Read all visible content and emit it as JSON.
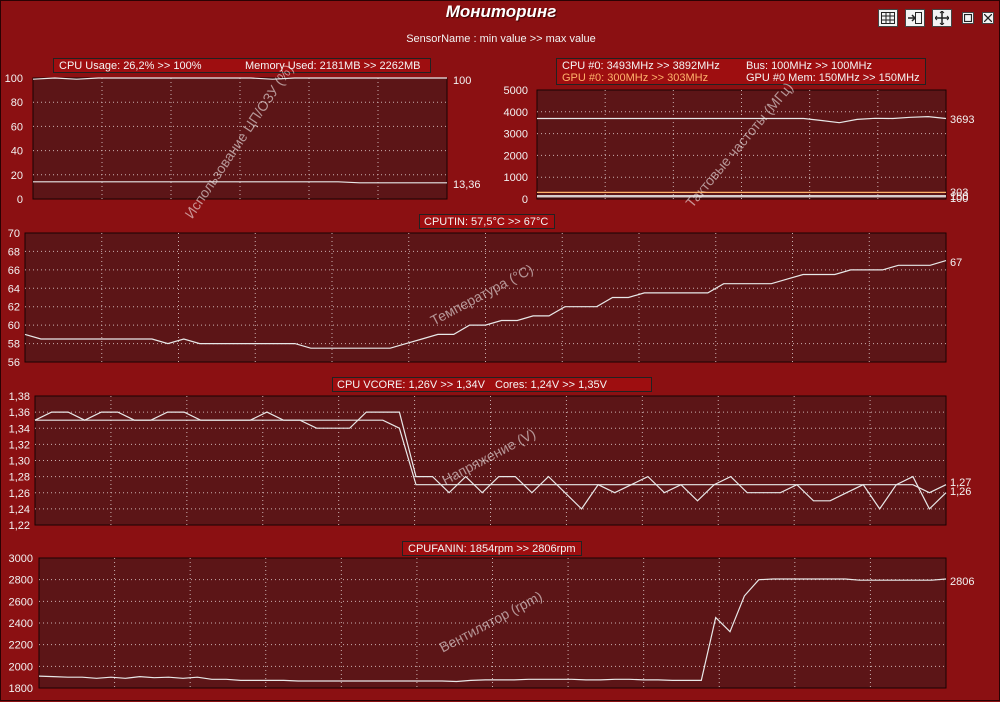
{
  "window": {
    "title": "Мониторинг",
    "subtitle": "SensorName : min value >> max value"
  },
  "toolbar": [
    {
      "name": "table-icon",
      "label": "table"
    },
    {
      "name": "dock-icon",
      "label": "dock"
    },
    {
      "name": "move-icon",
      "label": "move"
    },
    {
      "name": "restore-icon",
      "label": "restore"
    },
    {
      "name": "close-icon",
      "label": "close"
    }
  ],
  "colors": {
    "background": "#8b1012",
    "plot_bg": "#5c1517",
    "line": "#e8e8e8",
    "accent_text": "#ffb36b"
  },
  "panels": {
    "usage": {
      "legend": [
        "CPU Usage: 26,2% >> 100%",
        "Memory Used: 2181MB >> 2262MB"
      ],
      "axis_label": "Использование ЦП/ОЗУ (%)",
      "yticks": [
        "100",
        "80",
        "60",
        "40",
        "20",
        "0"
      ],
      "end_labels": [
        "100",
        "13,36"
      ]
    },
    "clocks": {
      "legend": [
        "CPU #0: 3493MHz >> 3892MHz",
        "Bus: 100MHz >> 100MHz",
        "GPU #0: 300MHz >> 303MHz",
        "GPU #0 Mem: 150MHz >> 150MHz"
      ],
      "axis_label": "Тактовые частоты (МГц)",
      "yticks": [
        "5000",
        "4000",
        "3000",
        "2000",
        "1000",
        "0"
      ],
      "end_labels": [
        "3693",
        "303",
        "150",
        "100"
      ]
    },
    "temp": {
      "legend": [
        "CPUTIN: 57,5°C >> 67°C"
      ],
      "axis_label": "Температура (°C)",
      "yticks": [
        "70",
        "68",
        "66",
        "64",
        "62",
        "60",
        "58",
        "56"
      ],
      "end_labels": [
        "67"
      ]
    },
    "voltage": {
      "legend": [
        "CPU VCORE: 1,26V >> 1,34V",
        "Cores: 1,24V >> 1,35V"
      ],
      "axis_label": "Напряжение (V)",
      "yticks": [
        "1,38",
        "1,36",
        "1,34",
        "1,32",
        "1,30",
        "1,28",
        "1,26",
        "1,24",
        "1,22"
      ],
      "end_labels": [
        "1,27",
        "1,26"
      ]
    },
    "fan": {
      "legend": [
        "CPUFANIN: 1854rpm >> 2806rpm"
      ],
      "axis_label": "Вентилятор (rpm)",
      "yticks": [
        "3000",
        "2800",
        "2600",
        "2400",
        "2200",
        "2000",
        "1800"
      ],
      "end_labels": [
        "2806"
      ]
    }
  },
  "chart_data": [
    {
      "type": "line",
      "title": "",
      "ylabel": "Использование ЦП/ОЗУ (%)",
      "ylim": [
        0,
        100
      ],
      "grid": true,
      "series": [
        {
          "name": "CPU Usage",
          "values": [
            99,
            100,
            99,
            100,
            100,
            100,
            100,
            100,
            100,
            100,
            100,
            99,
            100,
            100,
            100,
            100,
            100,
            100,
            100,
            100
          ]
        },
        {
          "name": "Memory Used",
          "values": [
            14.2,
            14.2,
            14.2,
            14.2,
            14.2,
            14.2,
            14.2,
            14.2,
            14.2,
            14.2,
            14.2,
            14.2,
            14.2,
            14.2,
            14.2,
            13.4,
            13.4,
            13.4,
            13.4,
            13.36
          ]
        }
      ]
    },
    {
      "type": "line",
      "title": "",
      "ylabel": "Тактовые частоты (МГц)",
      "ylim": [
        0,
        5000
      ],
      "grid": true,
      "series": [
        {
          "name": "CPU #0",
          "values": [
            3693,
            3693,
            3693,
            3693,
            3693,
            3693,
            3693,
            3693,
            3693,
            3693,
            3693,
            3693,
            3693,
            3693,
            3693,
            3693,
            3600,
            3500,
            3650,
            3700,
            3693,
            3750,
            3780,
            3693
          ]
        },
        {
          "name": "GPU #0",
          "values": [
            303,
            303,
            303,
            303,
            303,
            303,
            303,
            303,
            303,
            303,
            303,
            303,
            303,
            303,
            303,
            303,
            303,
            303,
            303,
            303,
            303,
            303,
            303,
            303
          ]
        },
        {
          "name": "GPU #0 Mem",
          "values": [
            150,
            150,
            150,
            150,
            150,
            150,
            150,
            150,
            150,
            150,
            150,
            150,
            150,
            150,
            150,
            150,
            150,
            150,
            150,
            150,
            150,
            150,
            150,
            150
          ]
        },
        {
          "name": "Bus",
          "values": [
            100,
            100,
            100,
            100,
            100,
            100,
            100,
            100,
            100,
            100,
            100,
            100,
            100,
            100,
            100,
            100,
            100,
            100,
            100,
            100,
            100,
            100,
            100,
            100
          ]
        }
      ]
    },
    {
      "type": "line",
      "title": "",
      "ylabel": "Температура (°C)",
      "ylim": [
        56,
        70
      ],
      "grid": true,
      "series": [
        {
          "name": "CPUTIN",
          "values": [
            59,
            58.5,
            58.5,
            58.5,
            58.5,
            58.5,
            58.5,
            58.5,
            58.5,
            58,
            58.5,
            58,
            58,
            58,
            58,
            58,
            58,
            58,
            57.5,
            57.5,
            57.5,
            57.5,
            57.5,
            57.5,
            58,
            58.5,
            59,
            59,
            60,
            60,
            60.5,
            60.5,
            61,
            61,
            62,
            62,
            62,
            63,
            63,
            63.5,
            63.5,
            63.5,
            63.5,
            63.5,
            64.5,
            64.5,
            64.5,
            64.5,
            65,
            65.5,
            65.5,
            65.5,
            66,
            66,
            66,
            66.5,
            66.5,
            66.5,
            67
          ]
        }
      ]
    },
    {
      "type": "line",
      "title": "",
      "ylabel": "Напряжение (V)",
      "ylim": [
        1.22,
        1.38
      ],
      "grid": true,
      "series": [
        {
          "name": "CPU VCORE",
          "values": [
            1.35,
            1.35,
            1.35,
            1.35,
            1.35,
            1.35,
            1.35,
            1.35,
            1.35,
            1.35,
            1.35,
            1.35,
            1.35,
            1.35,
            1.35,
            1.35,
            1.35,
            1.35,
            1.35,
            1.35,
            1.35,
            1.35,
            1.34,
            1.27,
            1.27,
            1.27,
            1.27,
            1.27,
            1.27,
            1.27,
            1.27,
            1.27,
            1.27,
            1.27,
            1.27,
            1.27,
            1.27,
            1.27,
            1.27,
            1.27,
            1.27,
            1.27,
            1.27,
            1.27,
            1.27,
            1.27,
            1.27,
            1.27,
            1.27,
            1.27,
            1.27,
            1.27,
            1.27,
            1.27,
            1.26,
            1.27
          ]
        },
        {
          "name": "Cores",
          "values": [
            1.35,
            1.36,
            1.36,
            1.35,
            1.36,
            1.36,
            1.35,
            1.35,
            1.36,
            1.36,
            1.35,
            1.35,
            1.35,
            1.35,
            1.36,
            1.35,
            1.35,
            1.34,
            1.34,
            1.34,
            1.36,
            1.36,
            1.36,
            1.28,
            1.28,
            1.26,
            1.28,
            1.26,
            1.28,
            1.28,
            1.26,
            1.28,
            1.26,
            1.24,
            1.27,
            1.26,
            1.27,
            1.28,
            1.26,
            1.27,
            1.25,
            1.27,
            1.28,
            1.26,
            1.26,
            1.26,
            1.27,
            1.25,
            1.25,
            1.26,
            1.27,
            1.24,
            1.27,
            1.28,
            1.24,
            1.26
          ]
        }
      ]
    },
    {
      "type": "line",
      "title": "",
      "ylabel": "Вентилятор (rpm)",
      "ylim": [
        1800,
        3000
      ],
      "grid": true,
      "series": [
        {
          "name": "CPUFANIN",
          "values": [
            1910,
            1905,
            1900,
            1900,
            1890,
            1900,
            1890,
            1905,
            1895,
            1900,
            1890,
            1900,
            1880,
            1880,
            1870,
            1870,
            1870,
            1870,
            1865,
            1865,
            1865,
            1865,
            1865,
            1865,
            1865,
            1865,
            1865,
            1865,
            1865,
            1860,
            1870,
            1875,
            1875,
            1875,
            1880,
            1880,
            1880,
            1880,
            1875,
            1875,
            1880,
            1880,
            1875,
            1875,
            1870,
            1870,
            1870,
            2450,
            2320,
            2650,
            2800,
            2806,
            2806,
            2806,
            2806,
            2806,
            2806,
            2795,
            2795,
            2795,
            2795,
            2795,
            2795,
            2806
          ]
        }
      ]
    }
  ]
}
